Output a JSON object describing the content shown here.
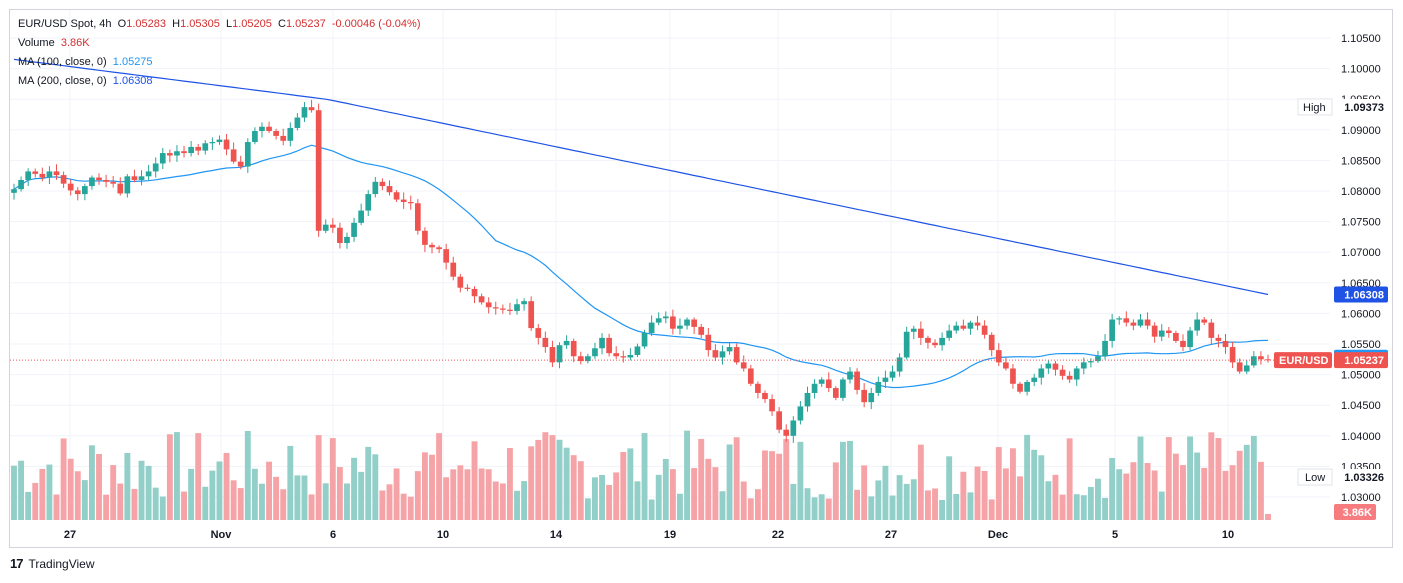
{
  "legend": {
    "symbol": "EUR/USD Spot, 4h",
    "open_label": "O",
    "open": "1.05283",
    "high_label": "H",
    "high": "1.05305",
    "low_label": "L",
    "low": "1.05205",
    "close_label": "C",
    "close": "1.05237",
    "change": "-0.00046 (-0.04%)",
    "volume_label": "Volume",
    "volume": "3.86K",
    "ma100_label": "MA (100, close, 0)",
    "ma100": "1.05275",
    "ma200_label": "MA (200, close, 0)",
    "ma200": "1.06308"
  },
  "price_tags": {
    "high_label": "High",
    "high_value": "1.09373",
    "low_label": "Low",
    "low_value": "1.03326",
    "ma200_value": "1.06308",
    "ma100_value": "1.05275",
    "symbol_label": "EUR/USD",
    "last_value": "1.05237",
    "volume_value": "3.86K"
  },
  "footer": {
    "brand": "TradingView"
  },
  "colors": {
    "up": "#26a69a",
    "down": "#ef5350",
    "ma100": "#2196f3",
    "ma200": "#1e53e5",
    "vol_up": "#92cfc8",
    "vol_down": "#f5a3a6"
  },
  "chart_data": {
    "type": "candlestick",
    "title": "EUR/USD Spot, 4h",
    "y_ticks": [
      "1.10500",
      "1.10000",
      "1.09500",
      "1.09000",
      "1.08500",
      "1.08000",
      "1.07500",
      "1.07000",
      "1.06500",
      "1.06000",
      "1.05500",
      "1.05000",
      "1.04500",
      "1.04000",
      "1.03500",
      "1.03000"
    ],
    "ylim": [
      1.0275,
      1.108
    ],
    "x_ticks": [
      "27",
      "Nov",
      "6",
      "10",
      "14",
      "19",
      "22",
      "27",
      "Dec",
      "5",
      "10"
    ],
    "grid": true,
    "ohlc_close": [
      1.0803,
      1.0818,
      1.0832,
      1.0828,
      1.0822,
      1.0832,
      1.0826,
      1.0812,
      1.0801,
      1.0795,
      1.0808,
      1.0822,
      1.0818,
      1.0815,
      1.0812,
      1.0796,
      1.0824,
      1.0818,
      1.0824,
      1.0832,
      1.0845,
      1.0862,
      1.0858,
      1.0865,
      1.0862,
      1.0872,
      1.0866,
      1.0878,
      1.088,
      1.0884,
      1.0868,
      1.0848,
      1.084,
      1.088,
      1.0898,
      1.0905,
      1.0898,
      1.089,
      1.0882,
      1.0903,
      1.092,
      1.0937,
      1.0932,
      1.0735,
      1.0745,
      1.074,
      1.0715,
      1.0725,
      1.0748,
      1.0768,
      1.0795,
      1.0815,
      1.0808,
      1.0798,
      1.0786,
      1.0782,
      1.078,
      1.0735,
      1.0712,
      1.0708,
      1.0705,
      1.0683,
      1.066,
      1.0642,
      1.064,
      1.0628,
      1.0618,
      1.061,
      1.0608,
      1.0606,
      1.0604,
      1.0615,
      1.062,
      1.0576,
      1.056,
      1.0545,
      1.052,
      1.0548,
      1.0555,
      1.053,
      1.0522,
      1.053,
      1.0543,
      1.056,
      1.0535,
      1.053,
      1.0528,
      1.0532,
      1.0546,
      1.0568,
      1.0585,
      1.0592,
      1.0595,
      1.0575,
      1.058,
      1.059,
      1.0578,
      1.0565,
      1.054,
      1.0528,
      1.0538,
      1.0545,
      1.052,
      1.051,
      1.0485,
      1.047,
      1.046,
      1.044,
      1.041,
      1.04,
      1.0425,
      1.0448,
      1.047,
      1.0485,
      1.0492,
      1.0478,
      1.0462,
      1.0492,
      1.0505,
      1.0475,
      1.0455,
      1.047,
      1.0488,
      1.0495,
      1.0505,
      1.0528,
      1.057,
      1.0575,
      1.056,
      1.0552,
      1.0548,
      1.056,
      1.0572,
      1.058,
      1.0575,
      1.0585,
      1.058,
      1.0565,
      1.054,
      1.052,
      1.051,
      1.0485,
      1.0472,
      1.0488,
      1.0495,
      1.051,
      1.0518,
      1.0508,
      1.0498,
      1.0492,
      1.051,
      1.052,
      1.0522,
      1.053,
      1.0555,
      1.059,
      1.0592,
      1.0585,
      1.058,
      1.059,
      1.058,
      1.0562,
      1.0572,
      1.0568,
      1.0555,
      1.0545,
      1.0572,
      1.059,
      1.0585,
      1.056,
      1.0555,
      1.0545,
      1.052,
      1.0505,
      1.0515,
      1.053,
      1.0525,
      1.05237
    ],
    "ma100_label": "MA (100, close, 0)",
    "ma200_label": "MA (200, close, 0)",
    "high": 1.09373,
    "low": 1.03326,
    "last": 1.05237,
    "ma100_last": 1.05275,
    "ma200_last": 1.06308
  }
}
